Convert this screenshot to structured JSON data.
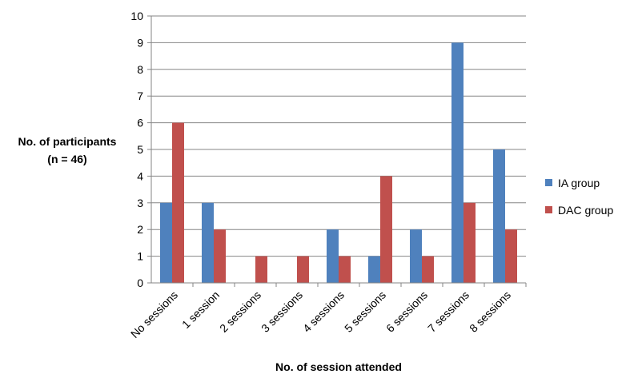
{
  "chart_data": {
    "type": "bar",
    "xlabel": "No. of session attended",
    "ylabel_lines": [
      "No. of participants",
      "(n = 46)"
    ],
    "categories": [
      "No sessions",
      "1 session",
      "2 sessions",
      "3 sessions",
      "4 sessions",
      "5 sessions",
      "6 sessions",
      "7 sessions",
      "8 sessions"
    ],
    "series": [
      {
        "name": "IA group",
        "color": "#4F81BD",
        "values": [
          3,
          3,
          0,
          0,
          2,
          1,
          2,
          9,
          5
        ]
      },
      {
        "name": "DAC group",
        "color": "#C0504D",
        "values": [
          6,
          2,
          1,
          1,
          1,
          4,
          1,
          3,
          2
        ]
      }
    ],
    "ylim": [
      0,
      10
    ],
    "yticks": [
      0,
      1,
      2,
      3,
      4,
      5,
      6,
      7,
      8,
      9,
      10
    ],
    "grid": true,
    "legend_position": "right"
  }
}
